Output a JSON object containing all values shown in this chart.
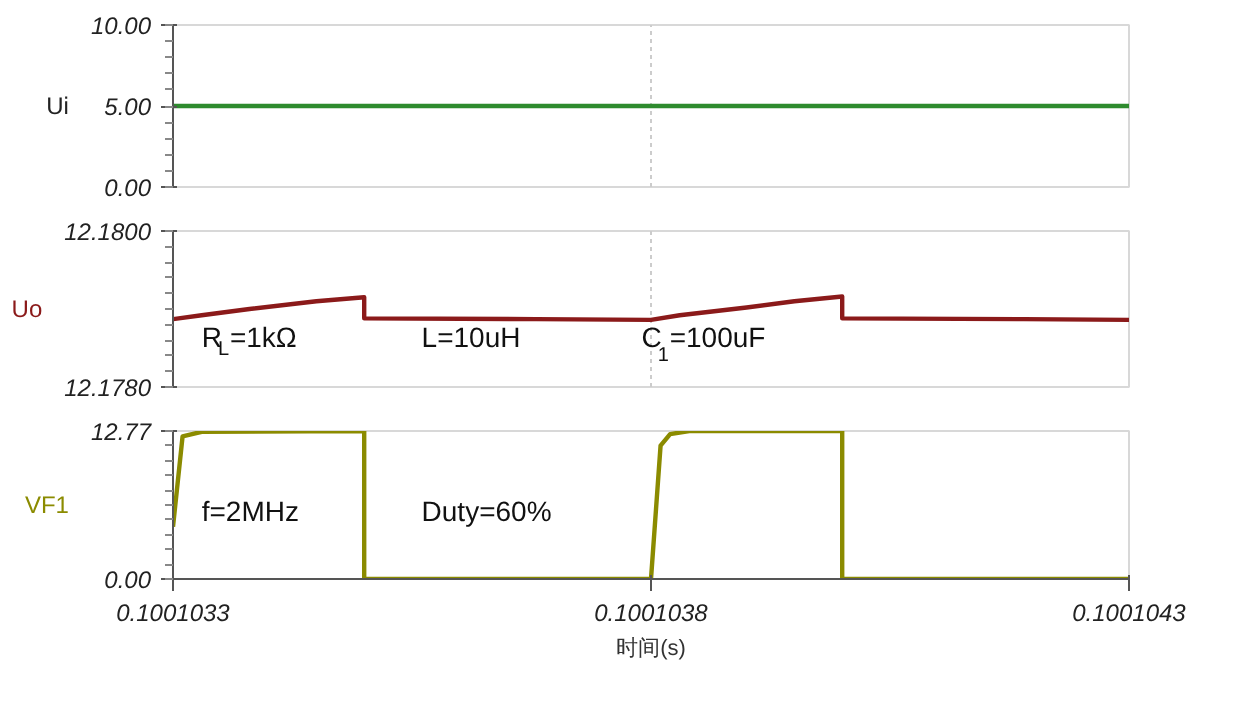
{
  "chart_data": [
    {
      "type": "line",
      "ylabel": "Ui",
      "x": [
        0.1001033,
        0.1001043
      ],
      "series": [
        {
          "color": "#2e8b2e",
          "values": [
            5,
            5
          ]
        }
      ],
      "xlim": [
        0.1001033,
        0.1001043
      ],
      "xticks": [
        0.1001033,
        0.1001038,
        0.1001043
      ],
      "ylim": [
        0,
        10
      ],
      "yticks": [
        {
          "value": 0,
          "label": "0.00"
        },
        {
          "value": 5,
          "label": "5.00"
        },
        {
          "value": 10,
          "label": "10.00"
        }
      ],
      "grid": "x",
      "tick_labels": "y"
    },
    {
      "type": "line",
      "ylabel": "Uo",
      "x": [
        0.1001033,
        0.10010333,
        0.10010338,
        0.10010345,
        0.1001035,
        0.1001035,
        0.10010368,
        0.1001038,
        0.10010383,
        0.1001039,
        0.10010395,
        0.100104,
        0.100104,
        0.10010419,
        0.1001043
      ],
      "series": [
        {
          "color": "#8b1a1a",
          "values": [
            12.17887,
            12.17892,
            12.179,
            12.1791,
            12.17915,
            12.17888,
            12.17887,
            12.17886,
            12.17892,
            12.17902,
            12.1791,
            12.17916,
            12.17888,
            12.17887,
            12.17886
          ]
        }
      ],
      "xlim": [
        0.1001033,
        0.1001043
      ],
      "xticks": [
        0.1001033,
        0.1001038,
        0.1001043
      ],
      "ylim": [
        12.178,
        12.18
      ],
      "yticks": [
        {
          "value": 12.178,
          "label": "12.1780"
        },
        {
          "value": 12.18,
          "label": "12.1800"
        }
      ],
      "grid": "x",
      "tick_labels": "y",
      "annotations": [
        "R$_{L}$=1kΩ",
        "L=10uH",
        "C$_{1}$=100uF"
      ]
    },
    {
      "type": "line",
      "ylabel": "VF1",
      "xlabel": "时间(s)",
      "x": [
        0.1001033,
        0.10010331,
        0.10010333,
        0.1001035,
        0.1001035,
        0.1001038,
        0.10010381,
        0.10010382,
        0.10010384,
        0.100104,
        0.100104,
        0.1001043
      ],
      "series": [
        {
          "color": "#8b8b00",
          "values": [
            4.5,
            12.3,
            12.7,
            12.77,
            0,
            0,
            11.5,
            12.5,
            12.77,
            12.77,
            0,
            0
          ]
        }
      ],
      "xlim": [
        0.1001033,
        0.1001043
      ],
      "xticks": [
        0.1001033,
        0.1001038,
        0.1001043
      ],
      "ylim": [
        0,
        12.77
      ],
      "yticks": [
        {
          "value": 0,
          "label": "0.00"
        },
        {
          "value": 12.77,
          "label": "12.77"
        }
      ],
      "grid": false,
      "annotations": [
        "f=2MHz",
        "Duty=60%"
      ]
    }
  ]
}
